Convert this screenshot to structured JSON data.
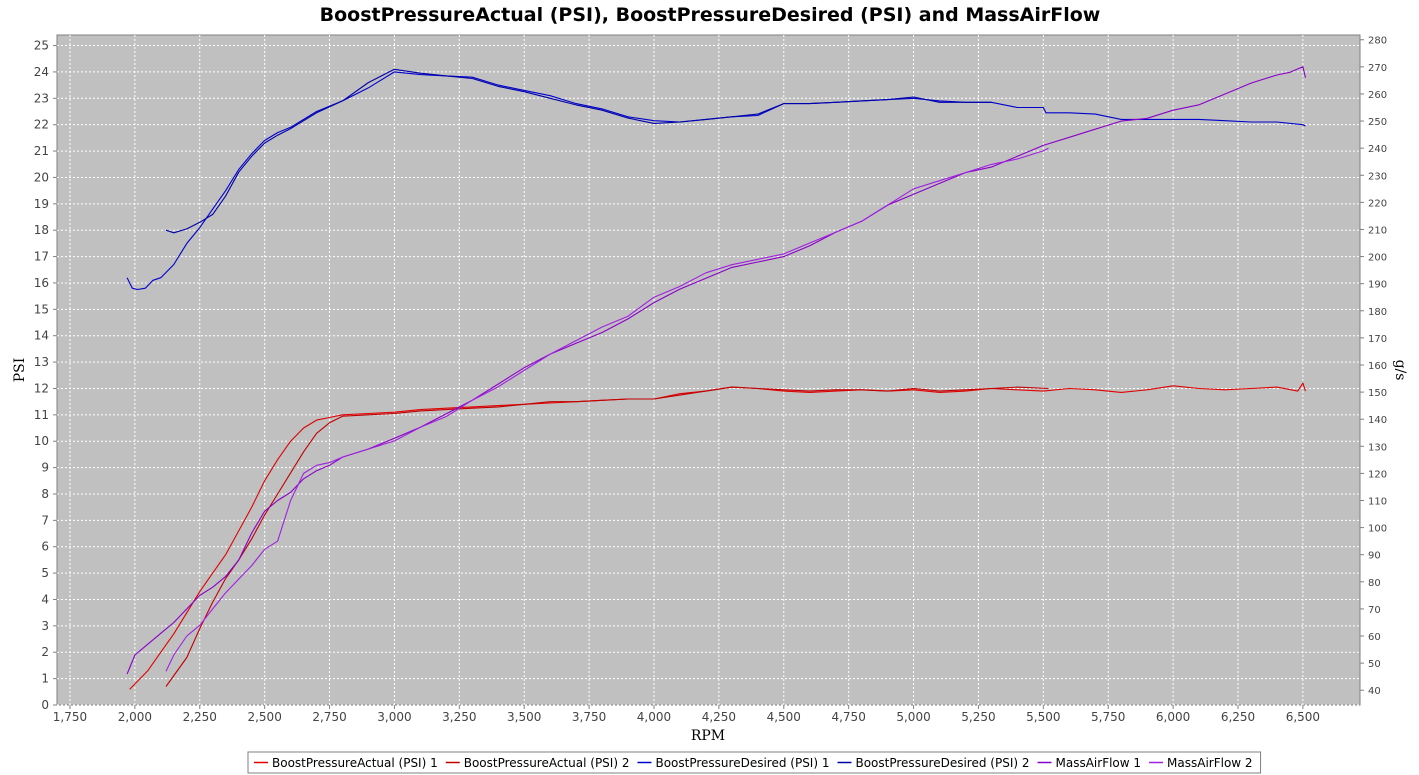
{
  "chart_data": {
    "type": "line",
    "title": "BoostPressureActual (PSI), BoostPressureDesired (PSI) and MassAirFlow",
    "xlabel": "RPM",
    "ylabel": "PSI",
    "ylabel_right": "g/s",
    "xlim": [
      1700,
      6720
    ],
    "ylim": [
      0,
      25.4
    ],
    "ylim_right": [
      34.55,
      281.75
    ],
    "x_ticks": [
      "1,750",
      "2,000",
      "2,250",
      "2,500",
      "2,750",
      "3,000",
      "3,250",
      "3,500",
      "3,750",
      "4,000",
      "4,250",
      "4,500",
      "4,750",
      "5,000",
      "5,250",
      "5,500",
      "5,750",
      "6,000",
      "6,250",
      "6,500"
    ],
    "x_tick_values": [
      1750,
      2000,
      2250,
      2500,
      2750,
      3000,
      3250,
      3500,
      3750,
      4000,
      4250,
      4500,
      4750,
      5000,
      5250,
      5500,
      5750,
      6000,
      6250,
      6500
    ],
    "y_ticks": [
      "0",
      "1",
      "2",
      "3",
      "4",
      "5",
      "6",
      "7",
      "8",
      "9",
      "10",
      "11",
      "12",
      "13",
      "14",
      "15",
      "16",
      "17",
      "18",
      "19",
      "20",
      "21",
      "22",
      "23",
      "24",
      "25"
    ],
    "y_tick_values": [
      0,
      1,
      2,
      3,
      4,
      5,
      6,
      7,
      8,
      9,
      10,
      11,
      12,
      13,
      14,
      15,
      16,
      17,
      18,
      19,
      20,
      21,
      22,
      23,
      24,
      25
    ],
    "y_right_ticks": [
      "40",
      "50",
      "60",
      "70",
      "80",
      "90",
      "100",
      "110",
      "120",
      "130",
      "140",
      "150",
      "160",
      "170",
      "180",
      "190",
      "200",
      "210",
      "220",
      "230",
      "240",
      "250",
      "260",
      "270",
      "280"
    ],
    "y_right_tick_values": [
      40,
      50,
      60,
      70,
      80,
      90,
      100,
      110,
      120,
      130,
      140,
      150,
      160,
      170,
      180,
      190,
      200,
      210,
      220,
      230,
      240,
      250,
      260,
      270,
      280
    ],
    "grid": true,
    "legend_position": "bottom",
    "series": [
      {
        "name": "BoostPressureActual (PSI) 1",
        "color": "#e00000",
        "axis": "left",
        "x": [
          1980,
          2050,
          2100,
          2150,
          2200,
          2250,
          2300,
          2350,
          2400,
          2450,
          2500,
          2550,
          2600,
          2650,
          2700,
          2750,
          2800,
          2900,
          3000,
          3100,
          3200,
          3300,
          3400,
          3500,
          3600,
          3700,
          3800,
          3900,
          4000,
          4100,
          4200,
          4300,
          4400,
          4500,
          4600,
          4700,
          4800,
          4900,
          5000,
          5100,
          5200,
          5300,
          5400,
          5500,
          5600,
          5700,
          5800,
          5900,
          6000,
          6100,
          6200,
          6300,
          6400,
          6480,
          6500,
          6510
        ],
        "y": [
          0.6,
          1.3,
          2.0,
          2.7,
          3.5,
          4.3,
          5.0,
          5.7,
          6.6,
          7.5,
          8.5,
          9.3,
          10.0,
          10.5,
          10.8,
          10.9,
          11.0,
          11.05,
          11.1,
          11.2,
          11.25,
          11.3,
          11.35,
          11.4,
          11.45,
          11.5,
          11.55,
          11.6,
          11.6,
          11.8,
          11.9,
          12.05,
          12.0,
          11.9,
          11.85,
          11.9,
          11.95,
          11.9,
          11.95,
          11.85,
          11.9,
          12.0,
          11.95,
          11.9,
          12.0,
          11.95,
          11.85,
          11.95,
          12.1,
          12.0,
          11.95,
          12.0,
          12.05,
          11.9,
          12.2,
          11.9
        ]
      },
      {
        "name": "BoostPressureActual (PSI) 2",
        "color": "#c00000",
        "axis": "left",
        "x": [
          2120,
          2200,
          2250,
          2300,
          2350,
          2400,
          2450,
          2500,
          2550,
          2600,
          2650,
          2700,
          2750,
          2800,
          2900,
          3000,
          3100,
          3200,
          3300,
          3400,
          3500,
          3600,
          3700,
          3800,
          3900,
          4000,
          4100,
          4200,
          4300,
          4400,
          4500,
          4600,
          4700,
          4800,
          4900,
          5000,
          5100,
          5200,
          5300,
          5400,
          5520
        ],
        "y": [
          0.7,
          1.8,
          2.9,
          3.9,
          4.8,
          5.5,
          6.3,
          7.2,
          8.0,
          8.8,
          9.6,
          10.3,
          10.7,
          10.95,
          11.0,
          11.05,
          11.15,
          11.2,
          11.25,
          11.3,
          11.4,
          11.5,
          11.5,
          11.55,
          11.6,
          11.6,
          11.75,
          11.9,
          12.05,
          12.0,
          11.95,
          11.9,
          11.95,
          11.95,
          11.9,
          12.0,
          11.9,
          11.95,
          12.0,
          12.05,
          12.0
        ]
      },
      {
        "name": "BoostPressureDesired (PSI) 1",
        "color": "#0000cc",
        "axis": "left",
        "x": [
          1970,
          1990,
          2010,
          2040,
          2070,
          2100,
          2150,
          2200,
          2250,
          2300,
          2350,
          2400,
          2450,
          2500,
          2550,
          2600,
          2700,
          2800,
          2900,
          3000,
          3100,
          3200,
          3300,
          3400,
          3500,
          3600,
          3700,
          3800,
          3900,
          4000,
          4100,
          4200,
          4300,
          4400,
          4500,
          4600,
          4700,
          4800,
          4900,
          5000,
          5100,
          5200,
          5300,
          5400,
          5500,
          5510,
          5600,
          5700,
          5800,
          5900,
          6000,
          6100,
          6200,
          6300,
          6400,
          6500,
          6510
        ],
        "y": [
          16.2,
          15.8,
          15.75,
          15.8,
          16.1,
          16.2,
          16.7,
          17.5,
          18.1,
          18.8,
          19.5,
          20.3,
          20.9,
          21.4,
          21.7,
          21.9,
          22.5,
          22.9,
          23.4,
          24.0,
          23.9,
          23.85,
          23.8,
          23.5,
          23.3,
          23.1,
          22.8,
          22.6,
          22.3,
          22.15,
          22.1,
          22.2,
          22.3,
          22.35,
          22.8,
          22.8,
          22.85,
          22.9,
          22.95,
          23.0,
          22.9,
          22.85,
          22.85,
          22.65,
          22.65,
          22.45,
          22.45,
          22.4,
          22.2,
          22.2,
          22.2,
          22.2,
          22.15,
          22.1,
          22.1,
          22.0,
          21.95
        ]
      },
      {
        "name": "BoostPressureDesired (PSI) 2",
        "color": "#0000aa",
        "axis": "left",
        "x": [
          2120,
          2150,
          2200,
          2250,
          2300,
          2350,
          2400,
          2450,
          2500,
          2550,
          2600,
          2700,
          2800,
          2900,
          3000,
          3100,
          3200,
          3300,
          3400,
          3500,
          3600,
          3700,
          3800,
          3900,
          4000,
          4100,
          4200,
          4300,
          4400,
          4500,
          4600,
          4700,
          4800,
          4900,
          5000,
          5100,
          5200,
          5300
        ],
        "y": [
          18.0,
          17.9,
          18.05,
          18.3,
          18.6,
          19.3,
          20.2,
          20.8,
          21.3,
          21.6,
          21.85,
          22.45,
          22.9,
          23.6,
          24.1,
          23.95,
          23.85,
          23.75,
          23.45,
          23.25,
          23.0,
          22.75,
          22.55,
          22.25,
          22.05,
          22.1,
          22.2,
          22.3,
          22.4,
          22.8,
          22.8,
          22.85,
          22.9,
          22.95,
          23.05,
          22.85,
          22.85,
          22.85
        ]
      },
      {
        "name": "MassAirFlow 1",
        "color": "#8a00c8",
        "axis": "right",
        "x": [
          1970,
          2000,
          2050,
          2100,
          2150,
          2200,
          2250,
          2300,
          2350,
          2400,
          2450,
          2500,
          2550,
          2600,
          2650,
          2700,
          2750,
          2800,
          2900,
          3000,
          3100,
          3200,
          3300,
          3400,
          3500,
          3600,
          3700,
          3800,
          3900,
          4000,
          4100,
          4200,
          4300,
          4400,
          4500,
          4600,
          4700,
          4800,
          4900,
          5000,
          5100,
          5200,
          5300,
          5400,
          5500,
          5600,
          5700,
          5800,
          5900,
          6000,
          6100,
          6200,
          6300,
          6400,
          6450,
          6500,
          6510
        ],
        "y": [
          46,
          53,
          57,
          61,
          65,
          70,
          75,
          78,
          82,
          88,
          98,
          106,
          110,
          113,
          118,
          121,
          123,
          126,
          129,
          133,
          137,
          142,
          147,
          153,
          159,
          164,
          168,
          172,
          177,
          183,
          188,
          192,
          196,
          198,
          200,
          204,
          209,
          213,
          219,
          223,
          227,
          231,
          233,
          237,
          241,
          244,
          247,
          250,
          251,
          254,
          256,
          260,
          264,
          267,
          268,
          270,
          266
        ]
      },
      {
        "name": "MassAirFlow 2",
        "color": "#a020e0",
        "axis": "right",
        "x": [
          2120,
          2150,
          2200,
          2250,
          2300,
          2350,
          2400,
          2450,
          2500,
          2550,
          2600,
          2650,
          2700,
          2750,
          2800,
          2900,
          3000,
          3100,
          3200,
          3300,
          3400,
          3500,
          3600,
          3700,
          3800,
          3900,
          4000,
          4100,
          4200,
          4300,
          4400,
          4500,
          4600,
          4700,
          4800,
          4900,
          5000,
          5100,
          5200,
          5300,
          5400,
          5500,
          5520
        ],
        "y": [
          47,
          53,
          60,
          64,
          70,
          76,
          81,
          86,
          92,
          95,
          110,
          120,
          123,
          124,
          126,
          129,
          132,
          137,
          141,
          147,
          152,
          158,
          164,
          169,
          174,
          178,
          185,
          189,
          194,
          197,
          199,
          201,
          205,
          209,
          213,
          219,
          225,
          228,
          231,
          234,
          236,
          239,
          240
        ]
      }
    ]
  }
}
